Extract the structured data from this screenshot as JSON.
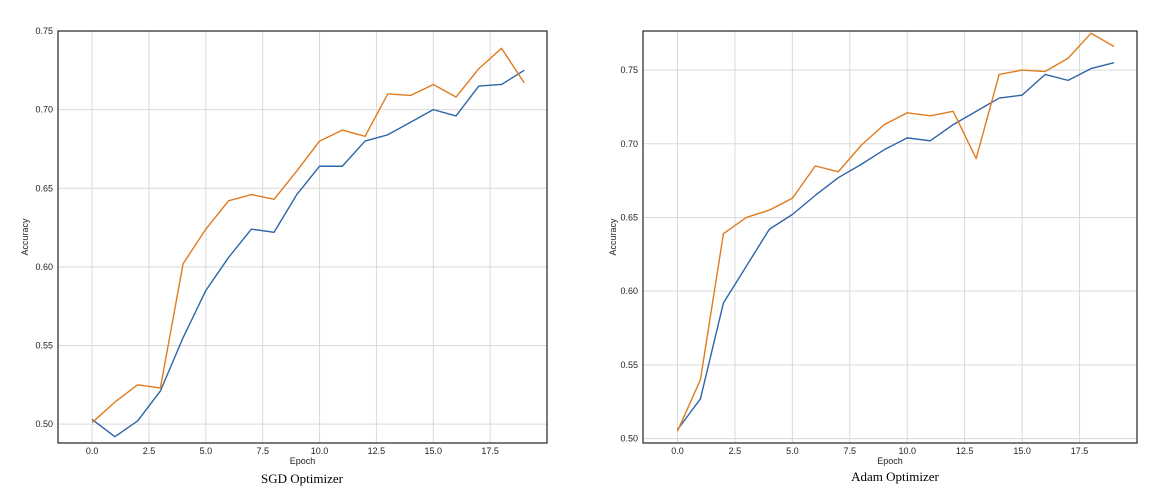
{
  "chart_data": [
    {
      "type": "line",
      "caption": "SGD Optimizer",
      "xlabel": "Epoch",
      "ylabel": "Accuracy",
      "xlim": [
        -1.5,
        20.0
      ],
      "ylim": [
        0.488,
        0.75
      ],
      "xticks": [
        "0.0",
        "2.5",
        "5.0",
        "7.5",
        "10.0",
        "12.5",
        "15.0",
        "17.5"
      ],
      "yticks": [
        "0.50",
        "0.55",
        "0.60",
        "0.65",
        "0.70",
        "0.75"
      ],
      "grid": true,
      "legend": "none",
      "x": [
        0,
        1,
        2,
        3,
        4,
        5,
        6,
        7,
        8,
        9,
        10,
        11,
        12,
        13,
        14,
        15,
        16,
        17,
        18,
        19
      ],
      "series": [
        {
          "color": "#2e65a8",
          "values": [
            0.503,
            0.492,
            0.502,
            0.521,
            0.555,
            0.585,
            0.606,
            0.624,
            0.622,
            0.646,
            0.664,
            0.664,
            0.68,
            0.684,
            0.692,
            0.7,
            0.696,
            0.715,
            0.716,
            0.725
          ]
        },
        {
          "color": "#e07b1f",
          "values": [
            0.501,
            0.514,
            0.525,
            0.523,
            0.602,
            0.624,
            0.642,
            0.646,
            0.643,
            0.661,
            0.68,
            0.687,
            0.683,
            0.71,
            0.709,
            0.716,
            0.708,
            0.726,
            0.739,
            0.717
          ]
        }
      ]
    },
    {
      "type": "line",
      "caption": "Adam Optimizer",
      "xlabel": "Epoch",
      "ylabel": "Accuracy",
      "xlim": [
        -1.5,
        20.0
      ],
      "ylim": [
        0.497,
        0.7765
      ],
      "xticks": [
        "0.0",
        "2.5",
        "5.0",
        "7.5",
        "10.0",
        "12.5",
        "15.0",
        "17.5"
      ],
      "yticks": [
        "0.50",
        "0.55",
        "0.60",
        "0.65",
        "0.70",
        "0.75"
      ],
      "grid": true,
      "legend": "none",
      "x": [
        0,
        1,
        2,
        3,
        4,
        5,
        6,
        7,
        8,
        9,
        10,
        11,
        12,
        13,
        14,
        15,
        16,
        17,
        18,
        19
      ],
      "series": [
        {
          "color": "#2e65a8",
          "values": [
            0.506,
            0.527,
            0.592,
            0.617,
            0.642,
            0.652,
            0.665,
            0.677,
            0.686,
            0.696,
            0.704,
            0.702,
            0.713,
            0.722,
            0.731,
            0.733,
            0.747,
            0.743,
            0.751,
            0.755
          ]
        },
        {
          "color": "#e07b1f",
          "values": [
            0.505,
            0.54,
            0.639,
            0.65,
            0.655,
            0.663,
            0.685,
            0.681,
            0.699,
            0.713,
            0.721,
            0.719,
            0.722,
            0.69,
            0.747,
            0.75,
            0.749,
            0.758,
            0.775,
            0.766
          ]
        }
      ]
    }
  ]
}
